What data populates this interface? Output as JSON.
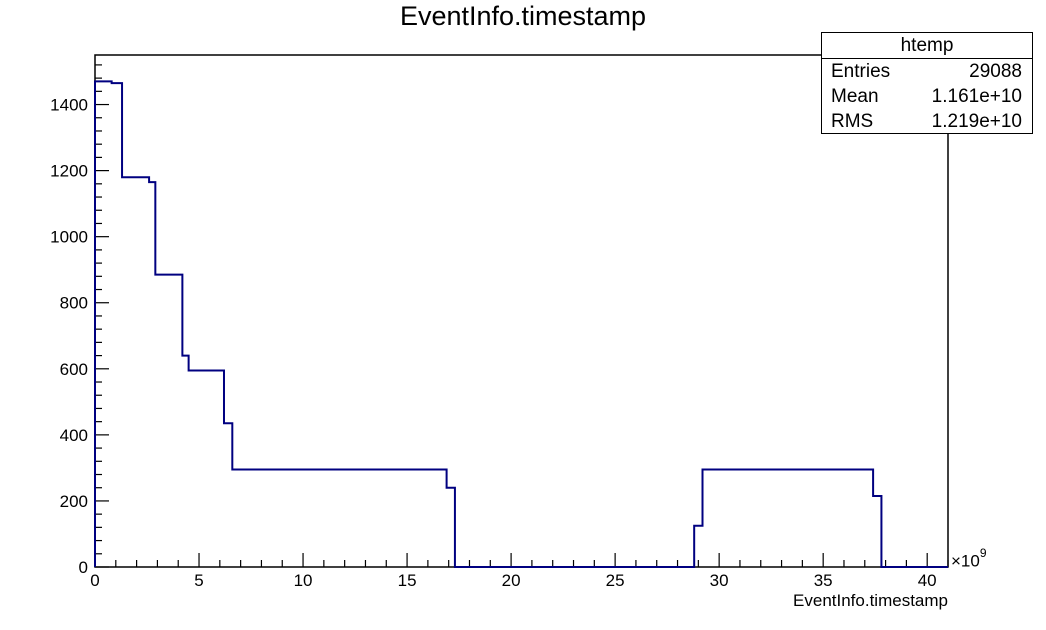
{
  "chart_data": {
    "type": "histogram",
    "title": "EventInfo.timestamp",
    "xlabel": "EventInfo.timestamp",
    "ylabel": "",
    "x_multiplier_base": "×10",
    "x_multiplier_exp": "9",
    "xlim": [
      0,
      41
    ],
    "ylim": [
      0,
      1550
    ],
    "x_ticks": [
      0,
      5,
      10,
      15,
      20,
      25,
      30,
      35,
      40
    ],
    "y_ticks": [
      0,
      200,
      400,
      600,
      800,
      1000,
      1200,
      1400
    ],
    "line_color": "#000080",
    "bins": [
      {
        "x0": 0.0,
        "x1": 0.8,
        "y": 1470
      },
      {
        "x0": 0.8,
        "x1": 1.3,
        "y": 1465
      },
      {
        "x0": 1.3,
        "x1": 2.6,
        "y": 1180
      },
      {
        "x0": 2.6,
        "x1": 2.9,
        "y": 1165
      },
      {
        "x0": 2.9,
        "x1": 4.2,
        "y": 885
      },
      {
        "x0": 4.2,
        "x1": 4.5,
        "y": 640
      },
      {
        "x0": 4.5,
        "x1": 6.2,
        "y": 595
      },
      {
        "x0": 6.2,
        "x1": 6.6,
        "y": 435
      },
      {
        "x0": 6.6,
        "x1": 16.9,
        "y": 295
      },
      {
        "x0": 16.9,
        "x1": 17.3,
        "y": 240
      },
      {
        "x0": 17.3,
        "x1": 28.8,
        "y": 0
      },
      {
        "x0": 28.8,
        "x1": 29.2,
        "y": 125
      },
      {
        "x0": 29.2,
        "x1": 37.4,
        "y": 295
      },
      {
        "x0": 37.4,
        "x1": 37.8,
        "y": 215
      },
      {
        "x0": 37.8,
        "x1": 41.0,
        "y": 0
      }
    ]
  },
  "stats_box": {
    "title": "htemp",
    "rows": [
      {
        "label": "Entries",
        "value": "29088"
      },
      {
        "label": "Mean",
        "value": "1.161e+10"
      },
      {
        "label": "RMS",
        "value": "1.219e+10"
      }
    ]
  }
}
